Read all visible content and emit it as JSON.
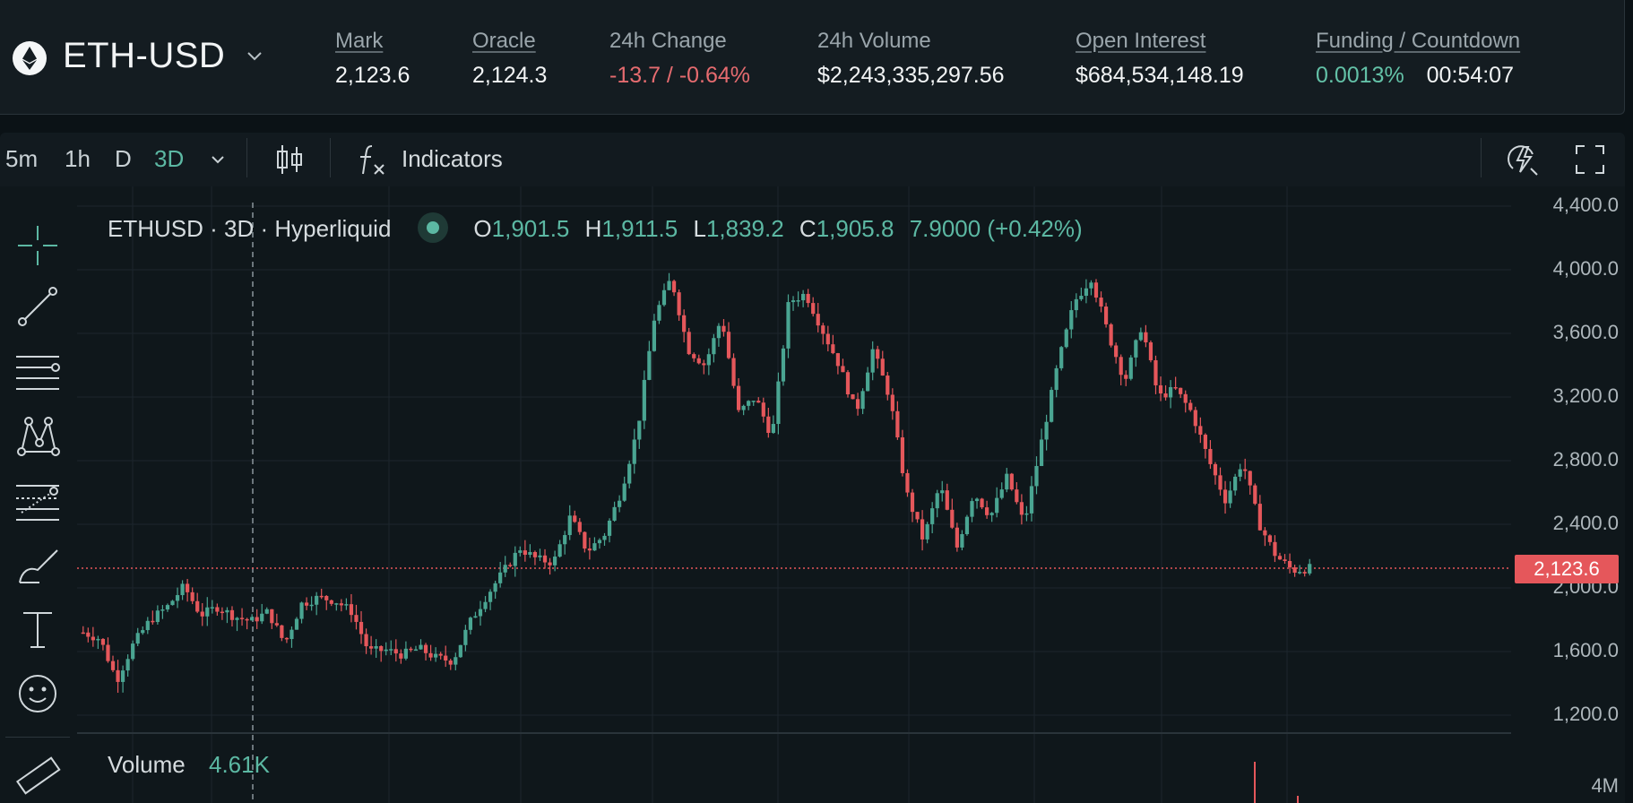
{
  "header": {
    "market": "ETH-USD",
    "stats": [
      {
        "label": "Mark",
        "value": "2,123.6"
      },
      {
        "label": "Oracle",
        "value": "2,124.3"
      },
      {
        "label": "24h Change",
        "value": "-13.7 / -0.64%"
      },
      {
        "label": "24h Volume",
        "value": "$2,243,335,297.56"
      },
      {
        "label": "Open Interest",
        "value": "$684,534,148.19"
      },
      {
        "label": "Funding / Countdown",
        "funding": "0.0013%",
        "countdown": "00:54:07"
      }
    ]
  },
  "toolbar": {
    "timeframes": [
      "5m",
      "1h",
      "D",
      "3D"
    ],
    "active_timeframe": "3D",
    "indicators_label": "Indicators"
  },
  "legend": {
    "symbol_line": "ETHUSD · 3D · Hyperliquid",
    "o_key": "O",
    "o": "1,901.5",
    "h_key": "H",
    "h": "1,911.5",
    "l_key": "L",
    "l": "1,839.2",
    "c_key": "C",
    "c": "1,905.8",
    "change": "7.9000 (+0.42%)"
  },
  "price_axis": {
    "labels": [
      "4,400.0",
      "4,000.0",
      "3,600.0",
      "3,200.0",
      "2,800.0",
      "2,400.0",
      "2,000.0",
      "1,600.0",
      "1,200.0"
    ],
    "current_price": "2,123.6"
  },
  "volume": {
    "label": "Volume",
    "value": "4.61K",
    "axis_label": "4M"
  },
  "colors": {
    "up": "#4aa592",
    "down": "#e5575b",
    "accent": "#5cb8a3"
  },
  "chart_data": {
    "type": "candlestick",
    "symbol": "ETHUSD",
    "interval": "3D",
    "ylim": [
      1200,
      4400
    ],
    "current_price": 2123.6,
    "close_path": [
      1720,
      1680,
      1420,
      1650,
      1800,
      1880,
      2010,
      1830,
      1880,
      1820,
      1790,
      1850,
      1650,
      1900,
      1940,
      1920,
      1850,
      1600,
      1610,
      1580,
      1620,
      1560,
      1540,
      1780,
      1950,
      2100,
      2250,
      2180,
      2160,
      2450,
      2230,
      2330,
      2600,
      3000,
      3700,
      3950,
      3500,
      3400,
      3700,
      3100,
      3200,
      2950,
      3800,
      3850,
      3620,
      3400,
      3100,
      3500,
      3200,
      2600,
      2300,
      2650,
      2250,
      2600,
      2450,
      2700,
      2400,
      2900,
      3400,
      3800,
      3950,
      3600,
      3300,
      3650,
      3200,
      3250,
      3100,
      2800,
      2550,
      2800,
      2400,
      2200,
      2110,
      2123
    ]
  }
}
